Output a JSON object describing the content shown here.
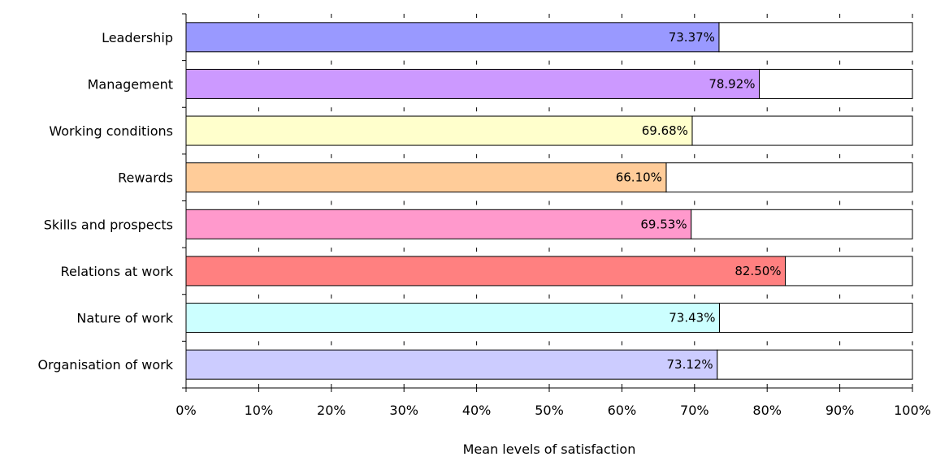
{
  "chart_data": {
    "type": "bar",
    "orientation": "horizontal",
    "stacked_remainder_to": 100,
    "categories": [
      "Leadership",
      "Management",
      "Working conditions",
      "Rewards",
      "Skills and prospects",
      "Relations at work",
      "Nature of work",
      "Organisation of work"
    ],
    "values": [
      73.37,
      78.92,
      69.68,
      66.1,
      69.53,
      82.5,
      73.43,
      73.12
    ],
    "value_labels": [
      "73.37%",
      "78.92%",
      "69.68%",
      "66.10%",
      "69.53%",
      "82.50%",
      "73.43%",
      "73.12%"
    ],
    "colors": [
      "#9999ff",
      "#cc99ff",
      "#ffffcc",
      "#ffcc99",
      "#ff99cc",
      "#ff8080",
      "#ccffff",
      "#ccccff"
    ],
    "remainder_color": "#ffffff",
    "xlim": [
      0,
      100
    ],
    "xticks": [
      0,
      10,
      20,
      30,
      40,
      50,
      60,
      70,
      80,
      90,
      100
    ],
    "xtick_labels": [
      "0%",
      "10%",
      "20%",
      "30%",
      "40%",
      "50%",
      "60%",
      "70%",
      "80%",
      "90%",
      "100%"
    ],
    "xlabel": "Mean levels of satisfaction",
    "ylabel": "",
    "title": "",
    "grid": false,
    "legend": "none"
  }
}
